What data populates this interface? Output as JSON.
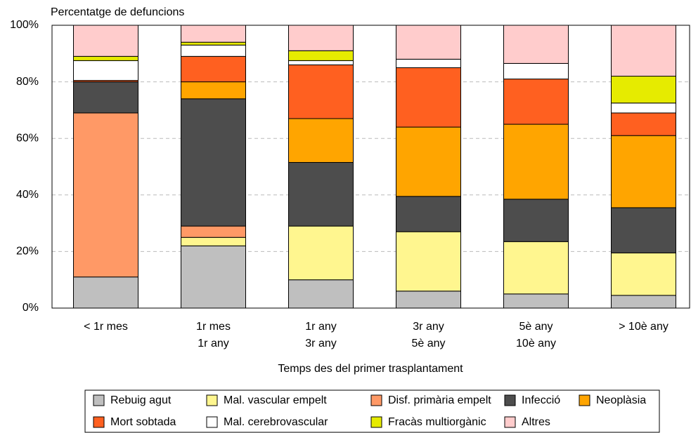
{
  "chart_data": {
    "type": "stacked-bar",
    "y_axis_title": "Percentatge de defuncions",
    "x_axis_title": "Temps des del primer trasplantament",
    "categories": [
      [
        "< 1r mes"
      ],
      [
        "1r mes",
        "1r any"
      ],
      [
        "1r any",
        "3r any"
      ],
      [
        "3r any",
        "5è any"
      ],
      [
        "5è any",
        "10è any"
      ],
      [
        "> 10è any"
      ]
    ],
    "series": [
      {
        "name": "Rebuig agut",
        "color": "#bfbfbf",
        "values": [
          11,
          22,
          10,
          6,
          5,
          4.5
        ]
      },
      {
        "name": "Mal. vascular empelt",
        "color": "#fff68f",
        "values": [
          0,
          3,
          19,
          21,
          18.5,
          15
        ]
      },
      {
        "name": "Disf. primària empelt",
        "color": "#ff9966",
        "values": [
          58,
          4,
          0,
          0,
          0,
          0
        ]
      },
      {
        "name": "Infecció",
        "color": "#4d4d4d",
        "values": [
          11,
          45,
          22.5,
          12.5,
          15,
          16
        ]
      },
      {
        "name": "Neoplàsia",
        "color": "#ffa500",
        "values": [
          0,
          6,
          15.5,
          24.5,
          26.5,
          25.5
        ]
      },
      {
        "name": "Mort sobtada",
        "color": "#ff6020",
        "values": [
          0.5,
          9,
          19,
          21,
          16,
          8
        ]
      },
      {
        "name": "Mal. cerebrovascular",
        "color": "#ffffff",
        "values": [
          7,
          4,
          1.5,
          3,
          5.5,
          3.5
        ]
      },
      {
        "name": "Fracàs multiorgànic",
        "color": "#e6eb00",
        "values": [
          1.5,
          1,
          3.5,
          0,
          0,
          9.5
        ]
      },
      {
        "name": "Altres",
        "color": "#ffcccc",
        "values": [
          11,
          6,
          9,
          12,
          13.5,
          18
        ]
      }
    ],
    "ylim": [
      0,
      100
    ],
    "yticks": [
      {
        "value": 0,
        "label": "0%"
      },
      {
        "value": 20,
        "label": "20%"
      },
      {
        "value": 40,
        "label": "40%"
      },
      {
        "value": 60,
        "label": "60%"
      },
      {
        "value": 80,
        "label": "80%"
      },
      {
        "value": 100,
        "label": "100%"
      }
    ],
    "grid": true
  }
}
